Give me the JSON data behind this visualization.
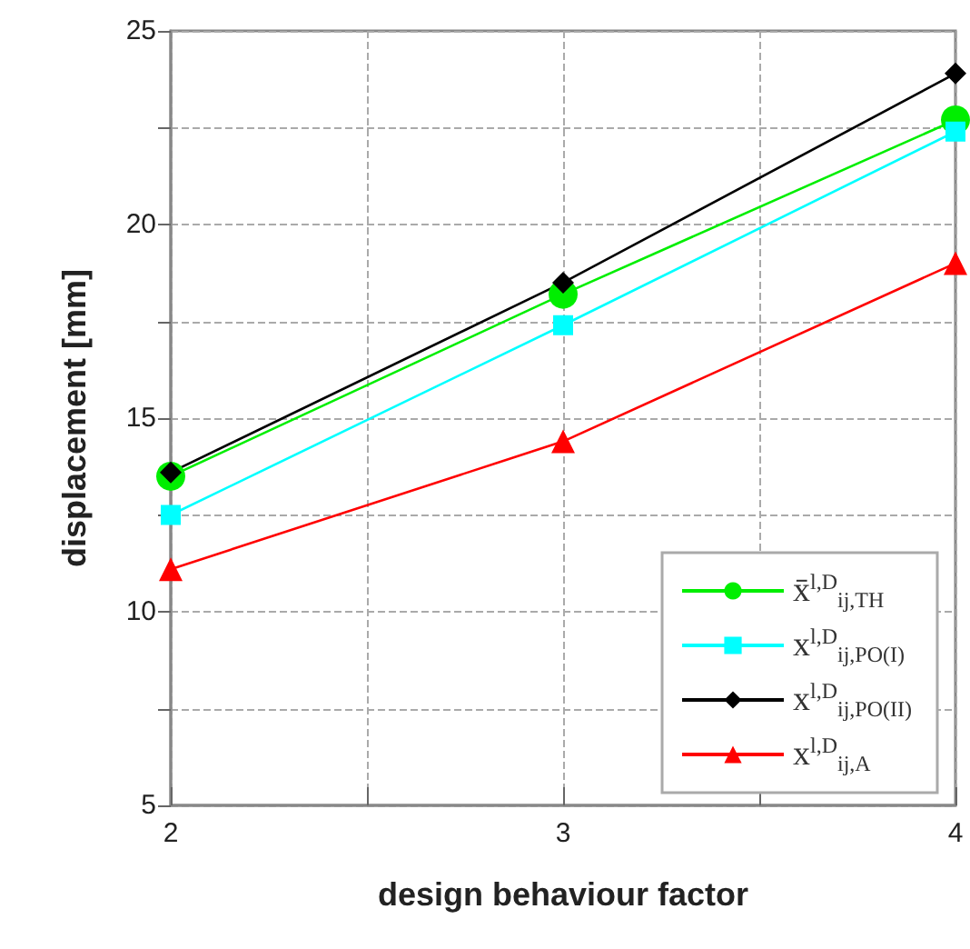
{
  "chart_data": {
    "type": "line",
    "xlabel": "design behaviour factor",
    "ylabel": "displacement [mm]",
    "x": [
      2,
      3,
      4
    ],
    "series": [
      {
        "name": "x̄$^{l,D}$$_{ij,TH}$",
        "color": "#00ee00",
        "marker": "circle",
        "values": [
          13.5,
          18.2,
          22.7
        ]
      },
      {
        "name": "x$^{l,D}$$_{ij,PO(I)}$",
        "color": "#00ffff",
        "marker": "square",
        "values": [
          12.5,
          17.4,
          22.4
        ]
      },
      {
        "name": "x$^{l,D}$$_{ij,PO(II)}$",
        "color": "#000000",
        "marker": "diamond",
        "values": [
          13.6,
          18.5,
          23.9
        ]
      },
      {
        "name": "x$^{l,D}$$_{ij,A}$",
        "color": "#ff0000",
        "marker": "triangle",
        "values": [
          11.1,
          14.4,
          19.0
        ]
      }
    ],
    "xlim": [
      2,
      4
    ],
    "xticks": [
      2,
      {
        "value": 2.5,
        "label": null
      },
      3,
      {
        "value": 3.5,
        "label": null
      },
      4
    ],
    "ylim": [
      5,
      25
    ],
    "yticks": [
      5,
      {
        "value": 7.5,
        "label": null
      },
      10,
      {
        "value": 12.5,
        "label": null
      },
      15,
      {
        "value": 17.5,
        "label": null
      },
      20,
      {
        "value": 22.5,
        "label": null
      },
      25
    ],
    "grid": true,
    "legend": "bottom right",
    "line_style": "solid"
  }
}
